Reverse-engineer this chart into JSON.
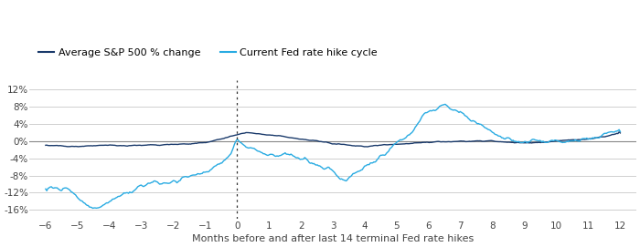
{
  "xlabel": "Months before and after last 14 terminal Fed rate hikes",
  "legend_avg": "Average S&P 500 % change",
  "legend_current": "Current Fed rate hike cycle",
  "avg_color": "#1a3a6b",
  "current_color": "#29abe2",
  "background_color": "#ffffff",
  "grid_color": "#c8c8c8",
  "zero_line_color": "#888888",
  "x_ticks": [
    -6,
    -5,
    -4,
    -3,
    -2,
    -1,
    0,
    1,
    2,
    3,
    4,
    5,
    6,
    7,
    8,
    9,
    10,
    11,
    12
  ],
  "ylim": [
    -18,
    14
  ],
  "yticks": [
    -16,
    -12,
    -8,
    -4,
    0,
    4,
    8,
    12
  ]
}
